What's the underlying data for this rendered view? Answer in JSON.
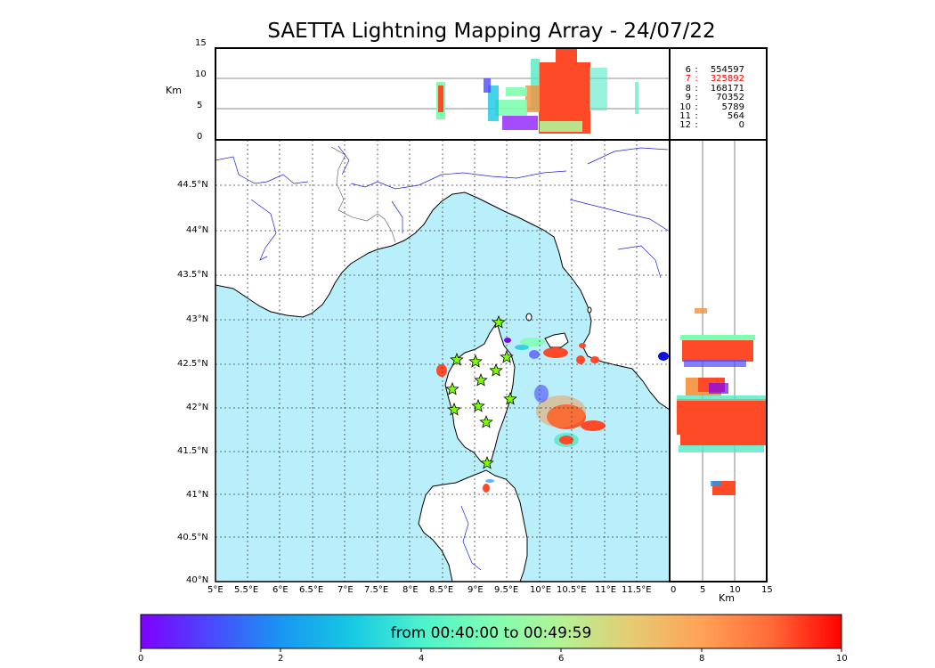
{
  "title": "SAETTA Lightning Mapping Array - 24/07/22",
  "altitude_panel": {
    "unit": "Km",
    "ticks": [
      "0",
      "5",
      "10",
      "15"
    ]
  },
  "side_panel": {
    "unit": "Km",
    "ticks": [
      "0",
      "5",
      "10",
      "15"
    ]
  },
  "map": {
    "lon_labels": [
      "5°E",
      "5.5°E",
      "6°E",
      "6.5°E",
      "7°E",
      "7.5°E",
      "8°E",
      "8.5°E",
      "9°E",
      "9.5°E",
      "10°E",
      "10.5°E",
      "11°E",
      "11.5°E"
    ],
    "lat_labels": [
      "40°N",
      "40.5°N",
      "41°N",
      "41.5°N",
      "42°N",
      "42.5°N",
      "43°N",
      "43.5°N",
      "44°N",
      "44.5°N"
    ],
    "sea_color": "#b9eefb",
    "land_color": "#ffffff",
    "coast_color": "#000000",
    "river_color": "#2020e0",
    "station_icon": "star-icon",
    "station_color": "#7cfc00"
  },
  "counts": [
    {
      "level": "6",
      "value": "554597",
      "color": "#000000"
    },
    {
      "level": "7",
      "value": "325892",
      "color": "#ff0000"
    },
    {
      "level": "8",
      "value": "168171",
      "color": "#000000"
    },
    {
      "level": "9",
      "value": "70352",
      "color": "#000000"
    },
    {
      "level": "10",
      "value": "5789",
      "color": "#000000"
    },
    {
      "level": "11",
      "value": "564",
      "color": "#000000"
    },
    {
      "level": "12",
      "value": "0",
      "color": "#000000"
    }
  ],
  "colorbar": {
    "label": "from 00:40:00 to 00:49:59",
    "ticks": [
      "0",
      "2",
      "4",
      "6",
      "8",
      "10"
    ],
    "colors": [
      "#7f00ff",
      "#4a49fd",
      "#1996f3",
      "#16c8e3",
      "#4cf2ce",
      "#7ffeb2",
      "#b2f395",
      "#e6cb73",
      "#ffa257",
      "#ff6a38",
      "#ff0000"
    ]
  }
}
